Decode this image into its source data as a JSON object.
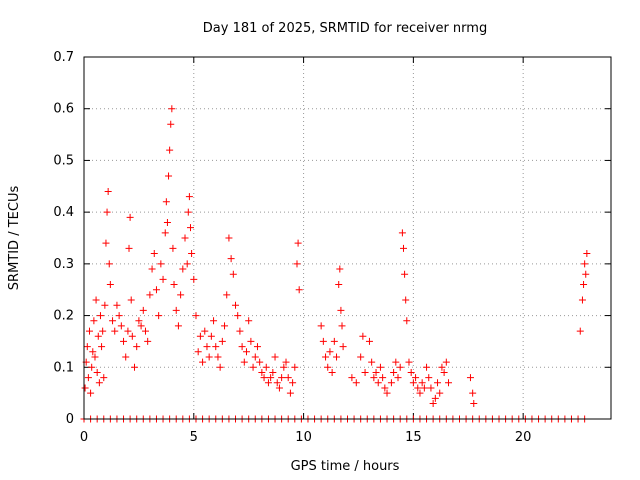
{
  "chart_data": {
    "type": "scatter",
    "title": "Day 181 of 2025, SRMTID for receiver nrmg",
    "xlabel": "GPS time / hours",
    "ylabel": "SRMTID / TECUs",
    "xlim": [
      0,
      24
    ],
    "ylim": [
      0,
      0.7
    ],
    "xticks": [
      0,
      5,
      10,
      15,
      20
    ],
    "yticks": [
      0,
      0.1,
      0.2,
      0.3,
      0.4,
      0.5,
      0.6,
      0.7
    ],
    "grid": true,
    "marker": "+",
    "color": "#ff0000",
    "series": [
      {
        "name": "SRMTID",
        "points": [
          [
            0.05,
            0.06
          ],
          [
            0.1,
            0.11
          ],
          [
            0.15,
            0.14
          ],
          [
            0.2,
            0.08
          ],
          [
            0.25,
            0.17
          ],
          [
            0.3,
            0.05
          ],
          [
            0.35,
            0.1
          ],
          [
            0.4,
            0.13
          ],
          [
            0.45,
            0.19
          ],
          [
            0.5,
            0.12
          ],
          [
            0.55,
            0.23
          ],
          [
            0.6,
            0.09
          ],
          [
            0.65,
            0.16
          ],
          [
            0.7,
            0.07
          ],
          [
            0.75,
            0.2
          ],
          [
            0.8,
            0.14
          ],
          [
            0.85,
            0.17
          ],
          [
            0.9,
            0.08
          ],
          [
            0.95,
            0.22
          ],
          [
            1.0,
            0.34
          ],
          [
            1.05,
            0.4
          ],
          [
            1.1,
            0.44
          ],
          [
            1.15,
            0.3
          ],
          [
            1.2,
            0.26
          ],
          [
            1.3,
            0.19
          ],
          [
            1.4,
            0.17
          ],
          [
            1.5,
            0.22
          ],
          [
            1.6,
            0.2
          ],
          [
            1.7,
            0.18
          ],
          [
            1.8,
            0.15
          ],
          [
            1.9,
            0.12
          ],
          [
            2.0,
            0.17
          ],
          [
            2.05,
            0.33
          ],
          [
            2.1,
            0.39
          ],
          [
            2.15,
            0.23
          ],
          [
            2.2,
            0.16
          ],
          [
            2.3,
            0.1
          ],
          [
            2.4,
            0.14
          ],
          [
            2.5,
            0.19
          ],
          [
            2.6,
            0.18
          ],
          [
            2.7,
            0.21
          ],
          [
            2.8,
            0.17
          ],
          [
            2.9,
            0.15
          ],
          [
            3.0,
            0.24
          ],
          [
            3.1,
            0.29
          ],
          [
            3.2,
            0.32
          ],
          [
            3.3,
            0.25
          ],
          [
            3.4,
            0.2
          ],
          [
            3.5,
            0.3
          ],
          [
            3.6,
            0.27
          ],
          [
            3.7,
            0.36
          ],
          [
            3.75,
            0.42
          ],
          [
            3.8,
            0.38
          ],
          [
            3.85,
            0.47
          ],
          [
            3.9,
            0.52
          ],
          [
            3.95,
            0.57
          ],
          [
            4.0,
            0.6
          ],
          [
            4.05,
            0.33
          ],
          [
            4.1,
            0.26
          ],
          [
            4.2,
            0.21
          ],
          [
            4.3,
            0.18
          ],
          [
            4.4,
            0.24
          ],
          [
            4.5,
            0.29
          ],
          [
            4.6,
            0.35
          ],
          [
            4.7,
            0.3
          ],
          [
            4.75,
            0.4
          ],
          [
            4.8,
            0.43
          ],
          [
            4.85,
            0.37
          ],
          [
            4.9,
            0.32
          ],
          [
            5.0,
            0.27
          ],
          [
            5.1,
            0.2
          ],
          [
            5.2,
            0.13
          ],
          [
            5.3,
            0.16
          ],
          [
            5.4,
            0.11
          ],
          [
            5.5,
            0.17
          ],
          [
            5.6,
            0.14
          ],
          [
            5.7,
            0.12
          ],
          [
            5.8,
            0.16
          ],
          [
            5.9,
            0.19
          ],
          [
            6.0,
            0.14
          ],
          [
            6.1,
            0.12
          ],
          [
            6.2,
            0.1
          ],
          [
            6.3,
            0.15
          ],
          [
            6.4,
            0.18
          ],
          [
            6.5,
            0.24
          ],
          [
            6.6,
            0.35
          ],
          [
            6.7,
            0.31
          ],
          [
            6.8,
            0.28
          ],
          [
            6.9,
            0.22
          ],
          [
            7.0,
            0.2
          ],
          [
            7.1,
            0.17
          ],
          [
            7.2,
            0.14
          ],
          [
            7.3,
            0.11
          ],
          [
            7.4,
            0.13
          ],
          [
            7.5,
            0.19
          ],
          [
            7.6,
            0.15
          ],
          [
            7.7,
            0.1
          ],
          [
            7.8,
            0.12
          ],
          [
            7.9,
            0.14
          ],
          [
            8.0,
            0.11
          ],
          [
            8.1,
            0.09
          ],
          [
            8.2,
            0.08
          ],
          [
            8.3,
            0.1
          ],
          [
            8.4,
            0.07
          ],
          [
            8.5,
            0.08
          ],
          [
            8.6,
            0.09
          ],
          [
            8.7,
            0.12
          ],
          [
            8.8,
            0.07
          ],
          [
            8.9,
            0.06
          ],
          [
            9.0,
            0.08
          ],
          [
            9.1,
            0.1
          ],
          [
            9.2,
            0.11
          ],
          [
            9.3,
            0.08
          ],
          [
            9.4,
            0.05
          ],
          [
            9.5,
            0.07
          ],
          [
            9.6,
            0.1
          ],
          [
            9.7,
            0.3
          ],
          [
            9.75,
            0.34
          ],
          [
            9.8,
            0.25
          ],
          [
            10.8,
            0.18
          ],
          [
            10.9,
            0.15
          ],
          [
            11.0,
            0.12
          ],
          [
            11.1,
            0.1
          ],
          [
            11.2,
            0.13
          ],
          [
            11.3,
            0.09
          ],
          [
            11.4,
            0.15
          ],
          [
            11.5,
            0.12
          ],
          [
            11.6,
            0.26
          ],
          [
            11.65,
            0.29
          ],
          [
            11.7,
            0.21
          ],
          [
            11.75,
            0.18
          ],
          [
            11.8,
            0.14
          ],
          [
            12.2,
            0.08
          ],
          [
            12.4,
            0.07
          ],
          [
            12.6,
            0.12
          ],
          [
            12.7,
            0.16
          ],
          [
            12.8,
            0.09
          ],
          [
            13.0,
            0.15
          ],
          [
            13.1,
            0.11
          ],
          [
            13.2,
            0.08
          ],
          [
            13.3,
            0.09
          ],
          [
            13.4,
            0.07
          ],
          [
            13.5,
            0.1
          ],
          [
            13.6,
            0.08
          ],
          [
            13.7,
            0.06
          ],
          [
            13.8,
            0.05
          ],
          [
            14.0,
            0.07
          ],
          [
            14.1,
            0.09
          ],
          [
            14.2,
            0.11
          ],
          [
            14.3,
            0.08
          ],
          [
            14.4,
            0.1
          ],
          [
            14.5,
            0.36
          ],
          [
            14.55,
            0.33
          ],
          [
            14.6,
            0.28
          ],
          [
            14.65,
            0.23
          ],
          [
            14.7,
            0.19
          ],
          [
            14.8,
            0.11
          ],
          [
            14.9,
            0.09
          ],
          [
            15.0,
            0.07
          ],
          [
            15.1,
            0.08
          ],
          [
            15.2,
            0.06
          ],
          [
            15.3,
            0.05
          ],
          [
            15.4,
            0.07
          ],
          [
            15.5,
            0.06
          ],
          [
            15.6,
            0.1
          ],
          [
            15.7,
            0.08
          ],
          [
            15.8,
            0.06
          ],
          [
            15.9,
            0.03
          ],
          [
            16.0,
            0.04
          ],
          [
            16.1,
            0.07
          ],
          [
            16.2,
            0.05
          ],
          [
            16.3,
            0.1
          ],
          [
            16.4,
            0.09
          ],
          [
            16.5,
            0.11
          ],
          [
            16.6,
            0.07
          ],
          [
            17.6,
            0.08
          ],
          [
            17.7,
            0.05
          ],
          [
            17.75,
            0.03
          ],
          [
            22.6,
            0.17
          ],
          [
            22.7,
            0.23
          ],
          [
            22.75,
            0.26
          ],
          [
            22.8,
            0.3
          ],
          [
            22.85,
            0.28
          ],
          [
            22.9,
            0.32
          ]
        ]
      }
    ],
    "zero_points_x": [
      0.0,
      0.3,
      0.6,
      0.9,
      1.2,
      1.5,
      1.8,
      2.1,
      2.4,
      2.7,
      3.0,
      3.3,
      3.6,
      3.9,
      4.2,
      4.5,
      4.8,
      5.1,
      5.4,
      5.7,
      6.0,
      6.3,
      6.6,
      6.9,
      7.2,
      7.5,
      7.8,
      8.1,
      8.4,
      8.7,
      9.0,
      9.3,
      9.6,
      9.9,
      10.2,
      10.5,
      10.8,
      11.1,
      11.4,
      11.7,
      12.0,
      12.3,
      12.6,
      12.9,
      13.2,
      13.5,
      13.8,
      14.1,
      14.4,
      14.7,
      15.0,
      15.3,
      15.6,
      15.9,
      16.2,
      16.5,
      16.8,
      17.1,
      17.4,
      17.7,
      18.0,
      18.3,
      18.6,
      18.9,
      19.2,
      19.5,
      19.8,
      20.1,
      20.4,
      20.7,
      21.0,
      21.3,
      21.6,
      21.9,
      22.2,
      22.5,
      22.8
    ]
  }
}
